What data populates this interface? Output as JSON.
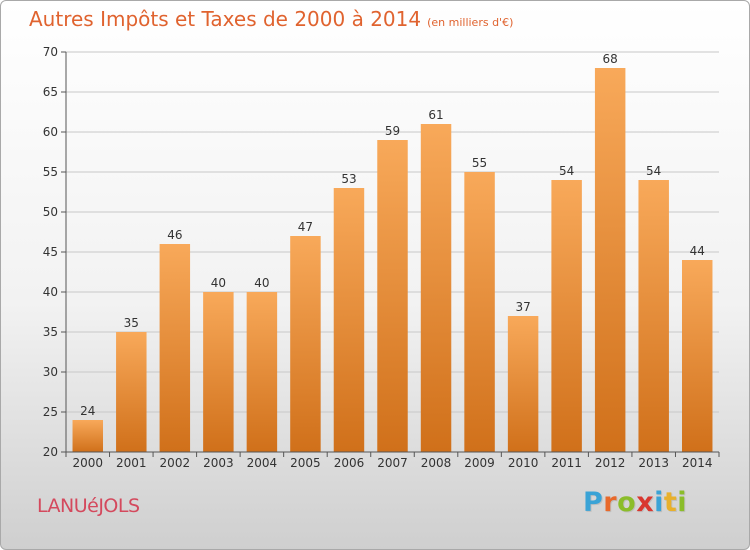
{
  "title": "Autres Impôts et Taxes de 2000 à 2014",
  "subtitle": "(en milliers d'€)",
  "commune": "LANUéJOLS",
  "brand": {
    "letters": [
      "P",
      "r",
      "o",
      "x",
      "i",
      "t",
      "i"
    ],
    "colors": [
      "#3aa3d6",
      "#e8692b",
      "#8bbd2a",
      "#d9372f",
      "#3aa3d6",
      "#e8b02b",
      "#8bbd2a"
    ]
  },
  "colors": {
    "bar_top": "#f8a95a",
    "bar_bottom": "#d0701a",
    "title": "#e0632f",
    "grid": "#c8c8c8"
  },
  "chart_data": {
    "type": "bar",
    "title": "Autres Impôts et Taxes de 2000 à 2014",
    "subtitle": "(en milliers d'€)",
    "xlabel": "",
    "ylabel": "",
    "categories": [
      "2000",
      "2001",
      "2002",
      "2003",
      "2004",
      "2005",
      "2006",
      "2007",
      "2008",
      "2009",
      "2010",
      "2011",
      "2012",
      "2013",
      "2014"
    ],
    "values": [
      24,
      35,
      46,
      40,
      40,
      47,
      53,
      59,
      61,
      55,
      37,
      54,
      68,
      54,
      44
    ],
    "ylim": [
      20,
      70
    ],
    "yticks": [
      20,
      25,
      30,
      35,
      40,
      45,
      50,
      55,
      60,
      65,
      70
    ],
    "grid": true,
    "data_labels": true
  }
}
